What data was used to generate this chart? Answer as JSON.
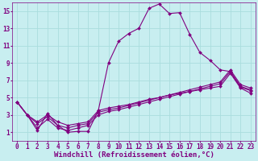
{
  "xlabel": "Windchill (Refroidissement éolien,°C)",
  "ylabel": "",
  "bg_color": "#c8eef0",
  "line_color": "#800080",
  "grid_color": "#aadddd",
  "xlim": [
    -0.5,
    23.5
  ],
  "ylim": [
    0,
    16
  ],
  "xticks": [
    0,
    1,
    2,
    3,
    4,
    5,
    6,
    7,
    8,
    9,
    10,
    11,
    12,
    13,
    14,
    15,
    16,
    17,
    18,
    19,
    20,
    21,
    22,
    23
  ],
  "yticks": [
    1,
    3,
    5,
    7,
    9,
    11,
    13,
    15
  ],
  "line1_x": [
    0,
    1,
    2,
    3,
    4,
    5,
    6,
    7,
    8,
    9,
    10,
    11,
    12,
    13,
    14,
    15,
    16,
    17,
    18,
    19,
    20,
    21,
    22,
    23
  ],
  "line1_y": [
    4.5,
    3.0,
    1.2,
    3.2,
    1.8,
    1.0,
    1.1,
    1.1,
    3.5,
    9.0,
    11.5,
    12.4,
    13.0,
    15.3,
    15.8,
    14.7,
    14.8,
    12.3,
    10.2,
    9.3,
    8.2,
    8.0,
    6.2,
    5.8
  ],
  "line2_x": [
    0,
    1,
    2,
    3,
    4,
    5,
    6,
    7,
    8,
    9,
    10,
    11,
    12,
    13,
    14,
    15,
    16,
    17,
    18,
    19,
    20,
    21,
    22,
    23
  ],
  "line2_y": [
    4.5,
    3.0,
    2.2,
    3.0,
    2.2,
    1.8,
    2.0,
    2.2,
    3.5,
    3.8,
    4.0,
    4.2,
    4.5,
    4.8,
    5.0,
    5.3,
    5.5,
    5.7,
    5.9,
    6.1,
    6.3,
    7.8,
    6.1,
    5.5
  ],
  "line3_x": [
    0,
    1,
    2,
    3,
    4,
    5,
    6,
    7,
    8,
    9,
    10,
    11,
    12,
    13,
    14,
    15,
    16,
    17,
    18,
    19,
    20,
    21,
    22,
    23
  ],
  "line3_y": [
    4.5,
    3.0,
    2.0,
    2.8,
    1.8,
    1.5,
    1.8,
    2.0,
    3.3,
    3.6,
    3.8,
    4.1,
    4.4,
    4.7,
    5.0,
    5.3,
    5.6,
    5.9,
    6.2,
    6.5,
    6.8,
    8.2,
    6.5,
    6.1
  ],
  "line4_x": [
    0,
    1,
    2,
    3,
    4,
    5,
    6,
    7,
    8,
    9,
    10,
    11,
    12,
    13,
    14,
    15,
    16,
    17,
    18,
    19,
    20,
    21,
    22,
    23
  ],
  "line4_y": [
    4.5,
    3.0,
    1.5,
    2.5,
    1.5,
    1.2,
    1.5,
    1.8,
    3.0,
    3.4,
    3.6,
    3.9,
    4.2,
    4.5,
    4.8,
    5.1,
    5.4,
    5.7,
    6.0,
    6.3,
    6.6,
    8.0,
    6.3,
    5.9
  ],
  "marker": "D",
  "markersize": 2.0,
  "linewidth": 0.8,
  "font_color": "#800080",
  "tick_fontsize": 5.5,
  "xlabel_fontsize": 6.5
}
